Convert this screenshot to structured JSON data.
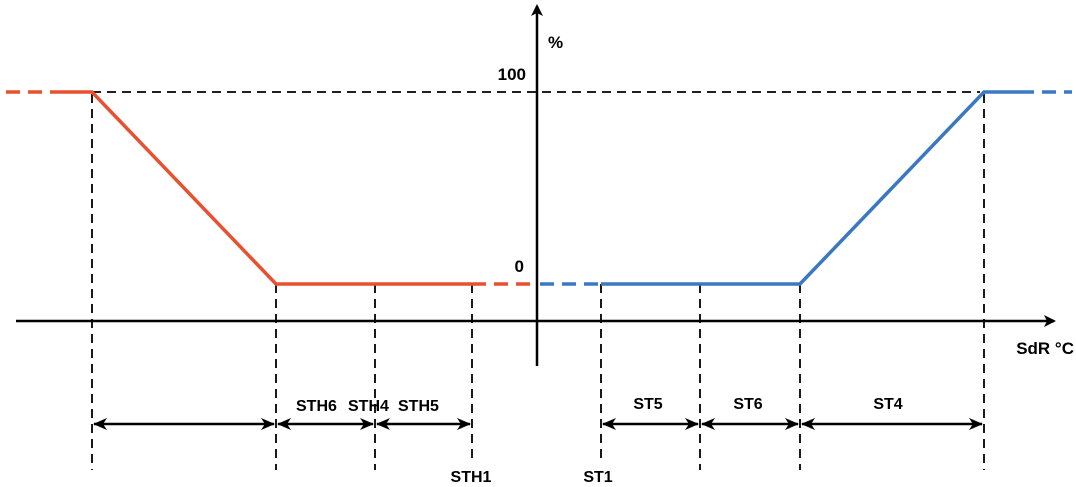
{
  "axes": {
    "y_unit": "%",
    "x_unit": "SdR °C"
  },
  "levels": {
    "high": "100",
    "low": "0"
  },
  "heating_side": {
    "color": "#e8512f",
    "points": {
      "start": "STH1"
    },
    "bands": [
      "STH6",
      "STH4",
      "STH5"
    ]
  },
  "cooling_side": {
    "color": "#3a78c2",
    "points": {
      "start": "ST1"
    },
    "bands": [
      "ST5",
      "ST6",
      "ST4"
    ]
  }
}
